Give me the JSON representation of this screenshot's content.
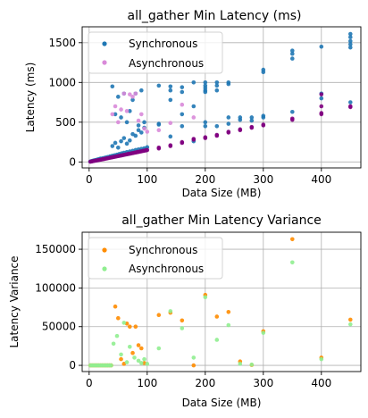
{
  "chart_data": [
    {
      "type": "scatter",
      "title": "all_gather Min Latency (ms)",
      "xlabel": "Data Size (MB)",
      "ylabel": "Latency (ms)",
      "xlim": [
        -12,
        468
      ],
      "ylim": [
        -75,
        1700
      ],
      "xticks": [
        0,
        100,
        200,
        300,
        400
      ],
      "yticks": [
        0,
        500,
        1000,
        1500
      ],
      "grid": true,
      "legend_position": "top-left",
      "series": [
        {
          "name": "Synchronous",
          "color": "#1f77b4",
          "points": [
            [
              2,
              5
            ],
            [
              4,
              10
            ],
            [
              6,
              14
            ],
            [
              8,
              18
            ],
            [
              10,
              22
            ],
            [
              12,
              26
            ],
            [
              15,
              32
            ],
            [
              18,
              38
            ],
            [
              20,
              42
            ],
            [
              24,
              48
            ],
            [
              28,
              55
            ],
            [
              32,
              62
            ],
            [
              36,
              70
            ],
            [
              40,
              78
            ],
            [
              44,
              85
            ],
            [
              48,
              92
            ],
            [
              52,
              100
            ],
            [
              56,
              108
            ],
            [
              60,
              116
            ],
            [
              65,
              124
            ],
            [
              70,
              132
            ],
            [
              75,
              140
            ],
            [
              80,
              150
            ],
            [
              85,
              158
            ],
            [
              90,
              165
            ],
            [
              95,
              172
            ],
            [
              100,
              185
            ],
            [
              40,
              200
            ],
            [
              45,
              240
            ],
            [
              50,
              180
            ],
            [
              55,
              260
            ],
            [
              60,
              300
            ],
            [
              65,
              230
            ],
            [
              70,
              270
            ],
            [
              75,
              350
            ],
            [
              80,
              330
            ],
            [
              85,
              400
            ],
            [
              90,
              370
            ],
            [
              95,
              430
            ],
            [
              40,
              950
            ],
            [
              45,
              600
            ],
            [
              50,
              820
            ],
            [
              55,
              560
            ],
            [
              60,
              860
            ],
            [
              65,
              500
            ],
            [
              70,
              640
            ],
            [
              75,
              780
            ],
            [
              80,
              860
            ],
            [
              85,
              460
            ],
            [
              90,
              900
            ],
            [
              95,
              500
            ],
            [
              120,
              960
            ],
            [
              120,
              480
            ],
            [
              120,
              470
            ],
            [
              140,
              320
            ],
            [
              140,
              780
            ],
            [
              140,
              900
            ],
            [
              140,
              950
            ],
            [
              160,
              450
            ],
            [
              160,
              600
            ],
            [
              160,
              880
            ],
            [
              160,
              940
            ],
            [
              180,
              700
            ],
            [
              180,
              1000
            ],
            [
              180,
              260
            ],
            [
              200,
              880
            ],
            [
              200,
              900
            ],
            [
              200,
              930
            ],
            [
              200,
              960
            ],
            [
              200,
              1000
            ],
            [
              200,
              450
            ],
            [
              200,
              500
            ],
            [
              220,
              450
            ],
            [
              220,
              900
            ],
            [
              220,
              960
            ],
            [
              220,
              1000
            ],
            [
              240,
              980
            ],
            [
              240,
              1000
            ],
            [
              240,
              480
            ],
            [
              240,
              560
            ],
            [
              260,
              530
            ],
            [
              260,
              560
            ],
            [
              280,
              560
            ],
            [
              280,
              520
            ],
            [
              300,
              1130
            ],
            [
              300,
              1160
            ],
            [
              300,
              560
            ],
            [
              300,
              580
            ],
            [
              350,
              1300
            ],
            [
              350,
              1360
            ],
            [
              350,
              1400
            ],
            [
              350,
              630
            ],
            [
              400,
              1450
            ],
            [
              400,
              800
            ],
            [
              400,
              860
            ],
            [
              450,
              1440
            ],
            [
              450,
              1480
            ],
            [
              450,
              1520
            ],
            [
              450,
              1570
            ],
            [
              450,
              1610
            ],
            [
              450,
              750
            ]
          ]
        },
        {
          "name": "Asynchronous",
          "color": "#800080",
          "points": [
            [
              2,
              3
            ],
            [
              4,
              6
            ],
            [
              6,
              9
            ],
            [
              8,
              12
            ],
            [
              10,
              15
            ],
            [
              12,
              18
            ],
            [
              14,
              20
            ],
            [
              16,
              23
            ],
            [
              18,
              26
            ],
            [
              20,
              29
            ],
            [
              22,
              32
            ],
            [
              24,
              35
            ],
            [
              26,
              38
            ],
            [
              28,
              41
            ],
            [
              30,
              44
            ],
            [
              32,
              47
            ],
            [
              34,
              50
            ],
            [
              36,
              53
            ],
            [
              38,
              56
            ],
            [
              40,
              59
            ],
            [
              42,
              62
            ],
            [
              44,
              65
            ],
            [
              46,
              68
            ],
            [
              48,
              71
            ],
            [
              50,
              74
            ],
            [
              52,
              77
            ],
            [
              54,
              80
            ],
            [
              56,
              83
            ],
            [
              58,
              86
            ],
            [
              60,
              89
            ],
            [
              62,
              92
            ],
            [
              64,
              95
            ],
            [
              66,
              98
            ],
            [
              68,
              101
            ],
            [
              70,
              104
            ],
            [
              72,
              107
            ],
            [
              74,
              110
            ],
            [
              76,
              113
            ],
            [
              78,
              116
            ],
            [
              80,
              119
            ],
            [
              82,
              122
            ],
            [
              84,
              125
            ],
            [
              86,
              128
            ],
            [
              88,
              131
            ],
            [
              90,
              134
            ],
            [
              92,
              137
            ],
            [
              94,
              140
            ],
            [
              96,
              143
            ],
            [
              98,
              146
            ],
            [
              100,
              150
            ],
            [
              120,
              170
            ],
            [
              120,
              180
            ],
            [
              140,
              200
            ],
            [
              140,
              210
            ],
            [
              160,
              240
            ],
            [
              160,
              250
            ],
            [
              180,
              280
            ],
            [
              180,
              290
            ],
            [
              200,
              300
            ],
            [
              200,
              310
            ],
            [
              220,
              330
            ],
            [
              220,
              340
            ],
            [
              240,
              370
            ],
            [
              240,
              380
            ],
            [
              260,
              400
            ],
            [
              260,
              410
            ],
            [
              280,
              430
            ],
            [
              280,
              440
            ],
            [
              300,
              460
            ],
            [
              300,
              470
            ],
            [
              350,
              530
            ],
            [
              350,
              545
            ],
            [
              400,
              600
            ],
            [
              400,
              615
            ],
            [
              400,
              700
            ],
            [
              400,
              850
            ],
            [
              450,
              690
            ],
            [
              450,
              700
            ]
          ]
        },
        {
          "name": "",
          "color": "#d98ad9",
          "points": [
            [
              40,
              600
            ],
            [
              45,
              700
            ],
            [
              50,
              500
            ],
            [
              55,
              660
            ],
            [
              60,
              860
            ],
            [
              65,
              640
            ],
            [
              70,
              850
            ],
            [
              75,
              820
            ],
            [
              80,
              860
            ],
            [
              85,
              520
            ],
            [
              90,
              600
            ],
            [
              95,
              420
            ],
            [
              100,
              380
            ],
            [
              120,
              400
            ],
            [
              140,
              490
            ],
            [
              160,
              720
            ],
            [
              180,
              560
            ]
          ]
        }
      ]
    },
    {
      "type": "scatter",
      "title": "all_gather Min Latency Variance",
      "xlabel": "Data Size (MB)",
      "ylabel": "Latency Variance",
      "xlim": [
        -12,
        468
      ],
      "ylim": [
        -8000,
        172000
      ],
      "xticks": [
        0,
        100,
        200,
        300,
        400
      ],
      "yticks": [
        0,
        50000,
        100000,
        150000
      ],
      "grid": true,
      "legend_position": "top-left",
      "series": [
        {
          "name": "Synchronous",
          "color": "#ff8c00",
          "points": [
            [
              2,
              0
            ],
            [
              5,
              0
            ],
            [
              8,
              0
            ],
            [
              11,
              0
            ],
            [
              14,
              0
            ],
            [
              17,
              0
            ],
            [
              20,
              0
            ],
            [
              23,
              0
            ],
            [
              26,
              0
            ],
            [
              29,
              0
            ],
            [
              32,
              0
            ],
            [
              35,
              0
            ],
            [
              38,
              0
            ],
            [
              45,
              76000
            ],
            [
              50,
              61000
            ],
            [
              55,
              8000
            ],
            [
              60,
              2000
            ],
            [
              65,
              54000
            ],
            [
              70,
              50000
            ],
            [
              75,
              16000
            ],
            [
              80,
              50000
            ],
            [
              85,
              26000
            ],
            [
              90,
              22000
            ],
            [
              95,
              3000
            ],
            [
              120,
              65000
            ],
            [
              140,
              68000
            ],
            [
              160,
              58000
            ],
            [
              180,
              0
            ],
            [
              200,
              91000
            ],
            [
              220,
              63000
            ],
            [
              240,
              69000
            ],
            [
              260,
              5000
            ],
            [
              280,
              500
            ],
            [
              300,
              44000
            ],
            [
              350,
              163000
            ],
            [
              400,
              10000
            ],
            [
              450,
              59000
            ]
          ]
        },
        {
          "name": "Asynchronous",
          "color": "#90ee90",
          "points": [
            [
              2,
              0
            ],
            [
              5,
              0
            ],
            [
              8,
              0
            ],
            [
              11,
              0
            ],
            [
              14,
              0
            ],
            [
              17,
              0
            ],
            [
              20,
              0
            ],
            [
              23,
              0
            ],
            [
              26,
              0
            ],
            [
              29,
              0
            ],
            [
              32,
              0
            ],
            [
              35,
              0
            ],
            [
              38,
              0
            ],
            [
              42,
              28000
            ],
            [
              48,
              38000
            ],
            [
              55,
              14000
            ],
            [
              60,
              55000
            ],
            [
              65,
              4000
            ],
            [
              70,
              24000
            ],
            [
              78,
              10000
            ],
            [
              85,
              6000
            ],
            [
              90,
              3000
            ],
            [
              95,
              8000
            ],
            [
              100,
              2000
            ],
            [
              120,
              22000
            ],
            [
              140,
              70000
            ],
            [
              160,
              48000
            ],
            [
              180,
              10000
            ],
            [
              200,
              88000
            ],
            [
              220,
              33000
            ],
            [
              240,
              52000
            ],
            [
              260,
              2000
            ],
            [
              280,
              1000
            ],
            [
              300,
              42000
            ],
            [
              350,
              133000
            ],
            [
              400,
              8000
            ],
            [
              450,
              53000
            ]
          ]
        }
      ]
    }
  ]
}
